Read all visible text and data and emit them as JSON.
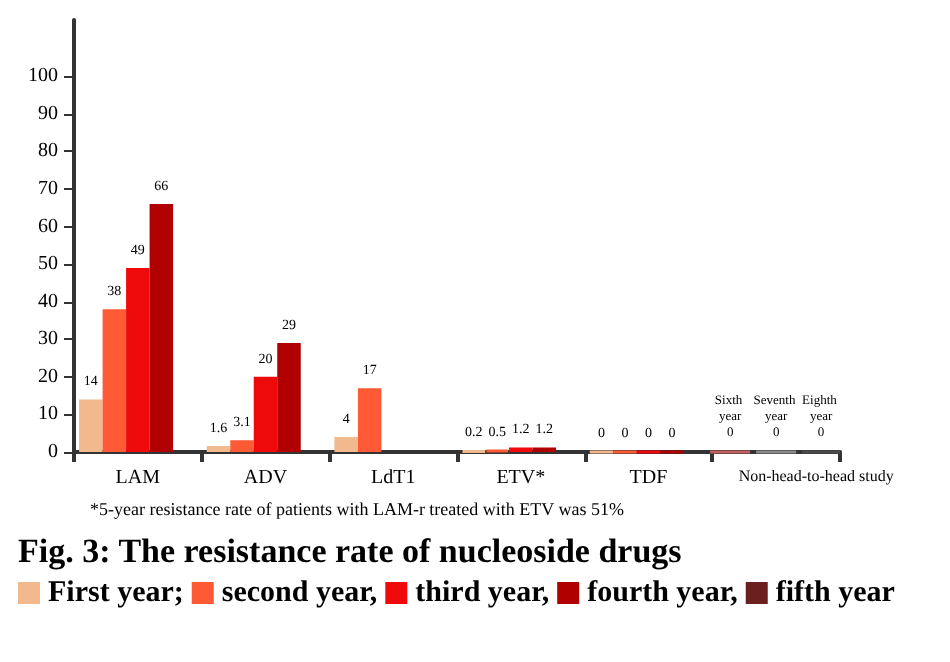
{
  "chart_data": {
    "type": "bar",
    "title": "Fig. 3: The resistance rate of nucleoside drugs",
    "annotations": [
      "*5-year resistance rate of patients with LAM-r treated with ETV was 51%"
    ],
    "categories": [
      "LAM",
      "ADV",
      "LdT1",
      "ETV*",
      "TDF",
      "Non-head-to-head study"
    ],
    "series": [
      {
        "name": "First year;",
        "color": "#f2b98f",
        "values": [
          14,
          1.6,
          4,
          0.2,
          0,
          null
        ]
      },
      {
        "name": "second year,",
        "color": "#ff5a36",
        "values": [
          38,
          3.1,
          17,
          0.5,
          0,
          null
        ]
      },
      {
        "name": "third year,",
        "color": "#ee0a0a",
        "values": [
          49,
          20,
          null,
          1.2,
          0,
          null
        ]
      },
      {
        "name": "fourth year,",
        "color": "#b00000",
        "values": [
          66,
          29,
          null,
          1.2,
          0,
          null
        ]
      },
      {
        "name": "fifth year",
        "color": "#6b1f1f",
        "values": [
          null,
          null,
          null,
          null,
          null,
          null
        ]
      },
      {
        "name": "Sixth year",
        "color": "#c06060",
        "values": [
          null,
          null,
          null,
          null,
          null,
          0
        ]
      },
      {
        "name": "Seventh year",
        "color": "#8a8a8a",
        "values": [
          null,
          null,
          null,
          null,
          null,
          0
        ]
      },
      {
        "name": "Eighth year",
        "color": "#4a4a4a",
        "values": [
          null,
          null,
          null,
          null,
          null,
          0
        ]
      }
    ],
    "ylim": [
      0,
      115
    ],
    "yticks": [
      0,
      10,
      20,
      30,
      40,
      50,
      60,
      70,
      80,
      90,
      100
    ],
    "data_labels": true,
    "legend": "bottom"
  }
}
